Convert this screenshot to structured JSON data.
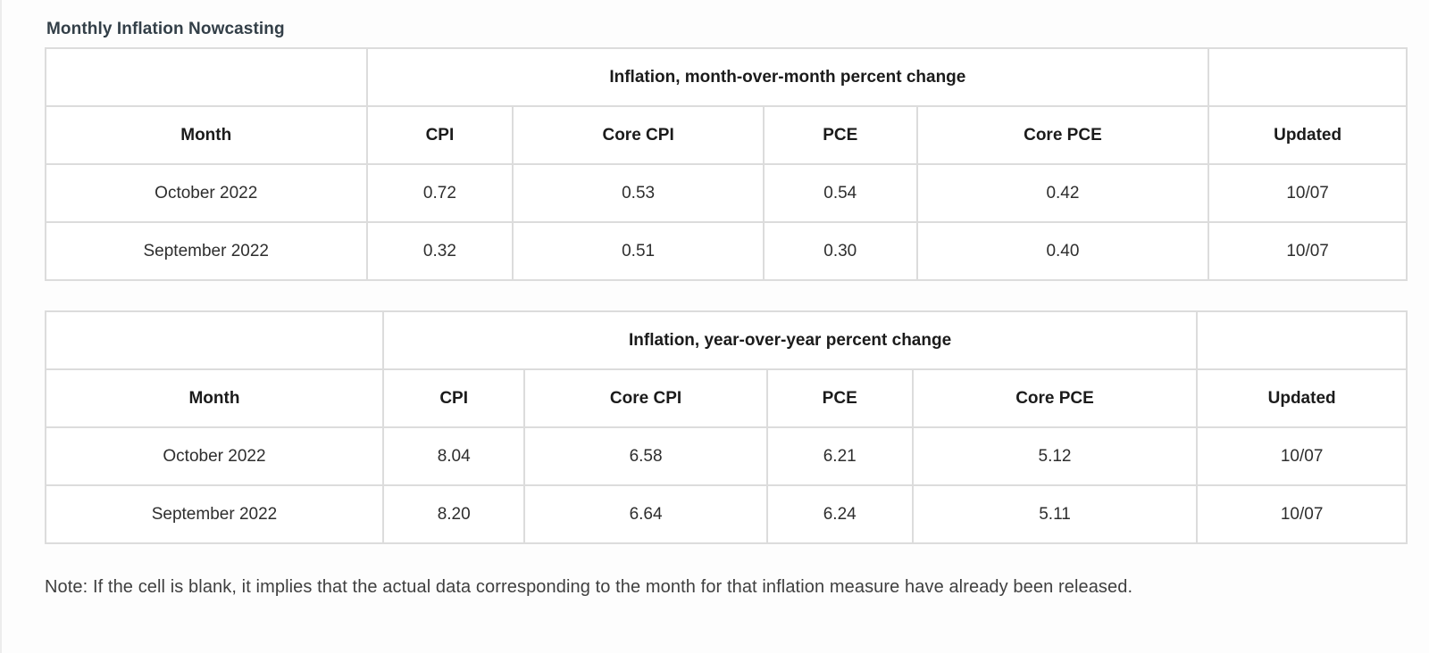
{
  "page": {
    "title": "Monthly Inflation Nowcasting",
    "note": "Note: If the cell is blank, it implies that the actual data corresponding to the month for that inflation measure have already been released."
  },
  "colors": {
    "title_text": "#333f48",
    "body_text": "#2e2e2e",
    "table_border": "#dcdcdc",
    "background": "#fdfdfd"
  },
  "tables": [
    {
      "id": "month-over-month",
      "group_header": "Inflation, month-over-month percent change",
      "columns": [
        "Month",
        "CPI",
        "Core CPI",
        "PCE",
        "Core PCE",
        "Updated"
      ],
      "rows": [
        [
          "October 2022",
          "0.72",
          "0.53",
          "0.54",
          "0.42",
          "10/07"
        ],
        [
          "September 2022",
          "0.32",
          "0.51",
          "0.30",
          "0.40",
          "10/07"
        ]
      ]
    },
    {
      "id": "year-over-year",
      "group_header": "Inflation, year-over-year percent change",
      "columns": [
        "Month",
        "CPI",
        "Core CPI",
        "PCE",
        "Core PCE",
        "Updated"
      ],
      "rows": [
        [
          "October 2022",
          "8.04",
          "6.58",
          "6.21",
          "5.12",
          "10/07"
        ],
        [
          "September 2022",
          "8.20",
          "6.64",
          "6.24",
          "5.11",
          "10/07"
        ]
      ]
    }
  ]
}
